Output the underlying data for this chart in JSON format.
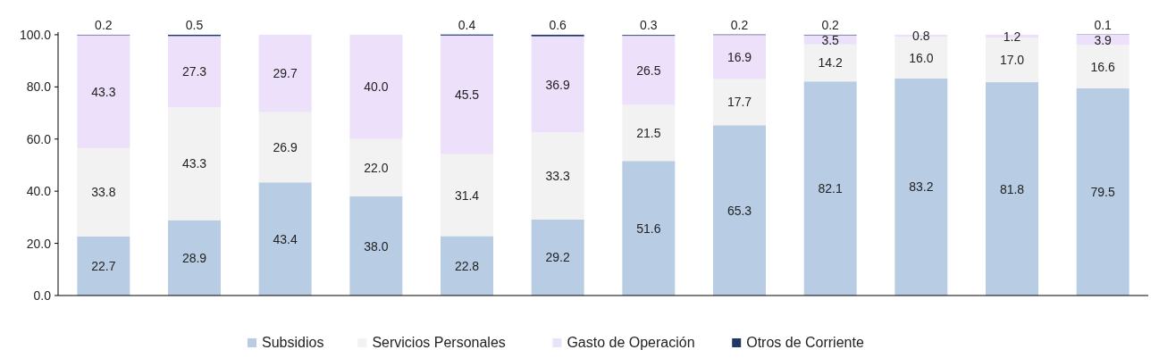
{
  "chart_data": {
    "type": "bar",
    "stacked": true,
    "categories": [
      null,
      null,
      null,
      null,
      null,
      null,
      null,
      null,
      null,
      null,
      null,
      null
    ],
    "series": [
      {
        "name": "Subsidios",
        "color": "#b8cce4",
        "values": [
          22.7,
          28.9,
          43.4,
          38.0,
          22.8,
          29.2,
          51.6,
          65.3,
          82.1,
          83.2,
          81.8,
          79.5
        ],
        "value_labels": [
          "22.7",
          "28.9",
          "43.4",
          "38.0",
          "22.8",
          "29.2",
          "51.6",
          "65.3",
          "82.1",
          "83.2",
          "81.8",
          "79.5"
        ]
      },
      {
        "name": "Servicios Personales",
        "color": "#f2f2f2",
        "values": [
          33.8,
          43.3,
          26.9,
          22.0,
          31.4,
          33.3,
          21.5,
          17.7,
          14.2,
          16.0,
          17.0,
          16.6
        ],
        "value_labels": [
          "33.8",
          "43.3",
          "26.9",
          "22.0",
          "31.4",
          "33.3",
          "21.5",
          "17.7",
          "14.2",
          "16.0",
          "17.0",
          "16.6"
        ]
      },
      {
        "name": "Gasto de Operación",
        "color": "#ece0fa",
        "values": [
          43.3,
          27.3,
          29.7,
          40.0,
          45.5,
          36.9,
          26.5,
          16.9,
          3.5,
          0.8,
          1.2,
          3.9
        ],
        "value_labels": [
          "43.3",
          "27.3",
          "29.7",
          "40.0",
          "45.5",
          "36.9",
          "26.5",
          "16.9",
          "3.5",
          "0.8",
          "1.2",
          "3.9"
        ]
      },
      {
        "name": "Otros de Corriente",
        "color": "#1f3864",
        "values": [
          0.2,
          0.5,
          0,
          0,
          0.4,
          0.6,
          0.3,
          0.2,
          0.2,
          0,
          0,
          0.1
        ],
        "value_labels": [
          "0.2",
          "0.5",
          null,
          null,
          "0.4",
          "0.6",
          "0.3",
          "0.2",
          "0.2",
          null,
          null,
          "0.1"
        ]
      }
    ],
    "ylim": [
      0,
      101
    ],
    "yticks": [
      {
        "value": 0,
        "label": "0.0"
      },
      {
        "value": 20,
        "label": "20.0"
      },
      {
        "value": 40,
        "label": "40.0"
      },
      {
        "value": 60,
        "label": "60.0"
      },
      {
        "value": 80,
        "label": "80.0"
      },
      {
        "value": 100,
        "label": "100.0"
      }
    ],
    "grid": false,
    "legend": "bottom"
  }
}
